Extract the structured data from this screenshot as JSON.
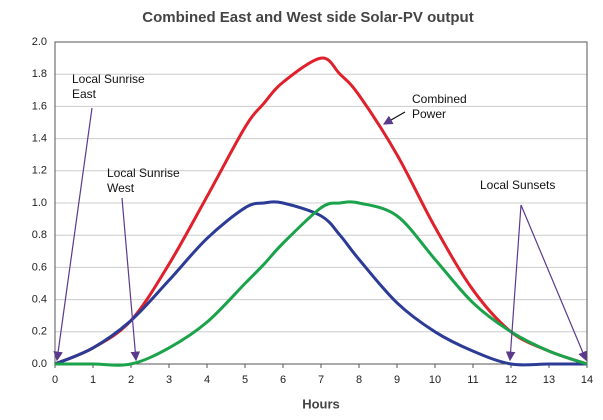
{
  "chart_data": {
    "type": "line",
    "title": "Combined East and West side Solar-PV output",
    "x_label": "Hours",
    "x": [
      0,
      1,
      2,
      3,
      4,
      5,
      5.5,
      6,
      7,
      7.5,
      8,
      9,
      10,
      11,
      12,
      13,
      14
    ],
    "series": [
      {
        "name": "Combined Power",
        "color": "#e0202a",
        "values": [
          0,
          0.1,
          0.27,
          0.62,
          1.04,
          1.47,
          1.62,
          1.75,
          1.9,
          1.8,
          1.67,
          1.3,
          0.85,
          0.46,
          0.2,
          0.08,
          0
        ]
      },
      {
        "name": "East",
        "color": "#2b3b96",
        "values": [
          0,
          0.1,
          0.27,
          0.52,
          0.78,
          0.97,
          1.0,
          1.0,
          0.92,
          0.8,
          0.65,
          0.38,
          0.2,
          0.08,
          0,
          0,
          0
        ]
      },
      {
        "name": "West",
        "color": "#1aa34a",
        "values": [
          0,
          0,
          0,
          0.1,
          0.26,
          0.5,
          0.62,
          0.75,
          0.97,
          1.0,
          1.0,
          0.92,
          0.65,
          0.38,
          0.2,
          0.08,
          0
        ]
      }
    ],
    "xlim": [
      0,
      14
    ],
    "xticks": [
      0,
      1,
      2,
      3,
      4,
      5,
      6,
      7,
      8,
      9,
      10,
      11,
      12,
      13,
      14
    ],
    "ylim": [
      0,
      2
    ],
    "yticks": [
      {
        "value": 0,
        "label": "0.0"
      },
      0.2,
      0.4,
      0.6,
      0.8,
      {
        "value": 1,
        "label": "1.0"
      },
      1.2,
      1.4,
      1.6,
      1.8,
      {
        "value": 2,
        "label": "2.0"
      }
    ],
    "grid": true,
    "annotations": [
      {
        "text": [
          "Local Sunrise",
          "East"
        ]
      },
      {
        "text": [
          "Local Sunrise",
          "West"
        ]
      },
      {
        "text": [
          "Combined",
          "Power"
        ]
      },
      {
        "text": [
          "Local Sunsets"
        ]
      }
    ]
  }
}
